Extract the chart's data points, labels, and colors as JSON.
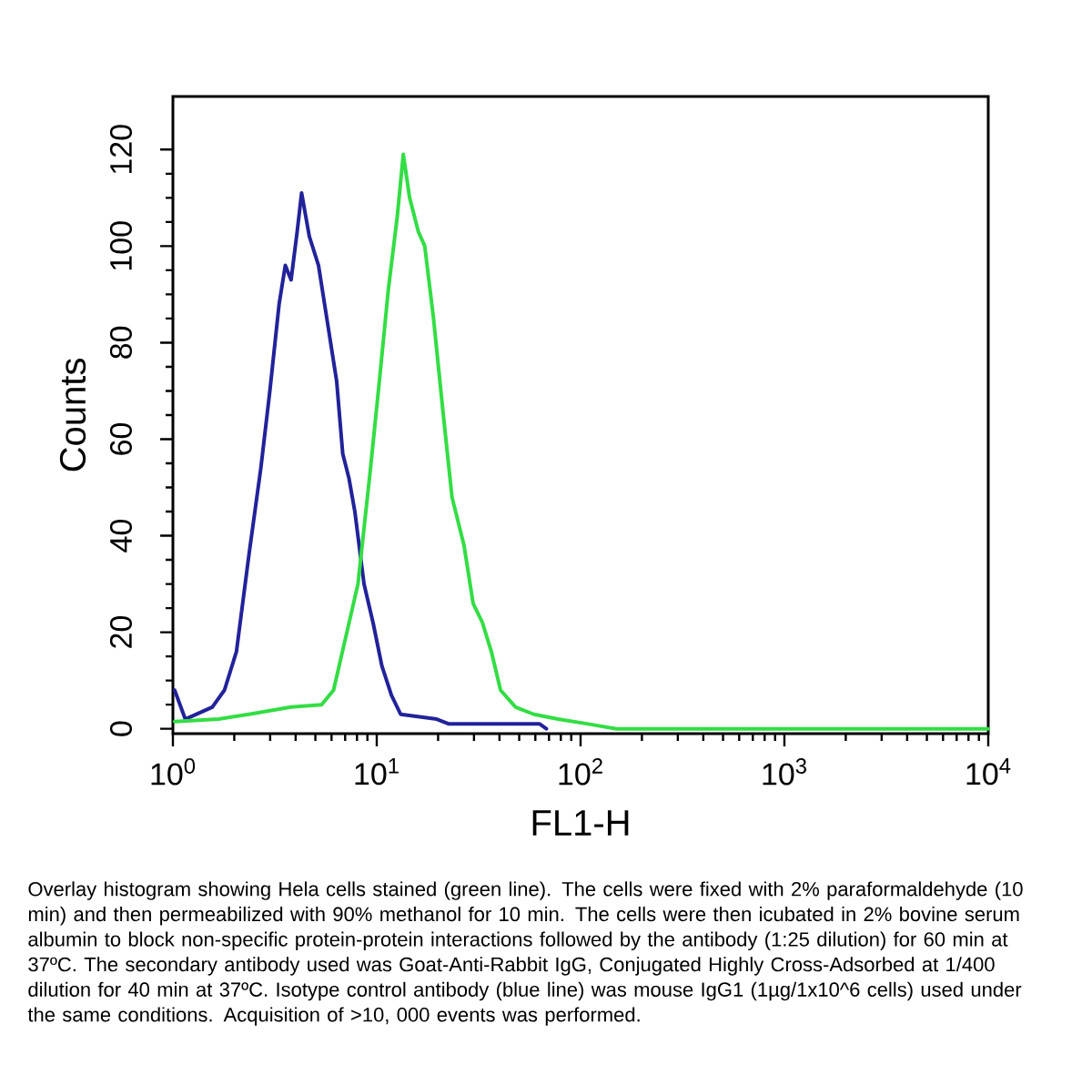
{
  "chart_data": {
    "type": "line",
    "xlabel": "FL1-H",
    "ylabel": "Counts",
    "log": "x",
    "xlim": [
      1,
      10000
    ],
    "ylim": [
      -1,
      131
    ],
    "xticks": [
      {
        "value": 1,
        "label": "10$^{0}$"
      },
      {
        "value": 10,
        "label": "10$^{1}$"
      },
      {
        "value": 100,
        "label": "10$^{2}$"
      },
      {
        "value": 1000,
        "label": "10$^{3}$"
      },
      {
        "value": 10000,
        "label": "10$^{4}$"
      }
    ],
    "yticks": [
      0,
      20,
      40,
      60,
      80,
      100,
      120
    ],
    "series": [
      {
        "color": "#22229a",
        "x": [
          1.02,
          1.15,
          1.56,
          1.79,
          2.05,
          2.36,
          2.7,
          2.99,
          3.32,
          3.56,
          3.8,
          4.07,
          4.28,
          4.67,
          5.18,
          5.74,
          6.36,
          6.81,
          7.3,
          7.81,
          8.66,
          9.59,
          10.6,
          11.8,
          13.1,
          19.7,
          22.6,
          63,
          68
        ],
        "values": [
          8,
          2,
          4.5,
          8,
          16,
          36,
          54,
          70,
          88,
          96,
          93,
          103,
          111,
          102,
          96,
          84,
          72,
          57,
          52,
          45,
          30,
          22,
          13,
          7,
          3,
          2,
          1,
          1,
          0
        ]
      },
      {
        "color": "#33dd44",
        "x": [
          1.02,
          1.67,
          2.36,
          3.8,
          5.36,
          6.14,
          7.05,
          8.09,
          9.27,
          10.3,
          11.4,
          12.6,
          13.5,
          14.5,
          16,
          17.2,
          19,
          21.1,
          23.4,
          26.8,
          29.7,
          33,
          36.5,
          40.5,
          48,
          59,
          77.6,
          109,
          150,
          10000
        ],
        "values": [
          1.5,
          2,
          3,
          4.5,
          5,
          8,
          19,
          30,
          53,
          72,
          91,
          106,
          119,
          110,
          103,
          100,
          85,
          66,
          48,
          38,
          26,
          22,
          16,
          8,
          4.5,
          3,
          2,
          1,
          0,
          0
        ]
      }
    ],
    "annotations": [
      "Overlay histogram showing Hela cells stained (green line). The cells were fixed with 2% paraformaldehyde (10 min) and then permeabilized with 90% methanol for 10 min. The cells were then icubated in 2% bovine serum albumin to block non-specific protein-protein interactions followed by the antibody (1:25 dilution) for 60 min at 37ºC. The secondary antibody used was Goat-Anti-Rabbit IgG, Conjugated Highly Cross-Adsorbed at 1/400 dilution for 40 min at 37ºC. Isotype control antibody (blue line) was mouse IgG1 (1µg/1x10^6 cells) used under the same conditions. Acquisition of >10, 000 events was performed."
    ]
  }
}
